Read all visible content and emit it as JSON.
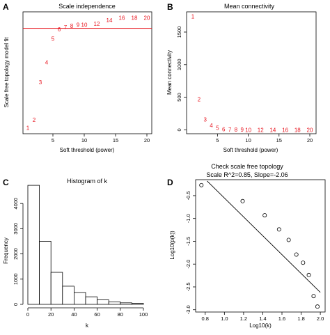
{
  "chart_data": [
    {
      "panel": "A",
      "type": "scatter",
      "title": "Scale independence",
      "xlabel": "Soft threshold (power)",
      "ylabel": "Scale free topology model fit",
      "xlim": [
        1,
        20
      ],
      "ylim": [
        -0.05,
        0.99
      ],
      "xticks": [
        5,
        10,
        15,
        20
      ],
      "points": [
        {
          "label": "1",
          "x": 1,
          "y": 0.0
        },
        {
          "label": "2",
          "x": 2,
          "y": 0.07
        },
        {
          "label": "3",
          "x": 3,
          "y": 0.39
        },
        {
          "label": "4",
          "x": 4,
          "y": 0.56
        },
        {
          "label": "5",
          "x": 5,
          "y": 0.76
        },
        {
          "label": "6",
          "x": 6,
          "y": 0.84
        },
        {
          "label": "7",
          "x": 7,
          "y": 0.86
        },
        {
          "label": "8",
          "x": 8,
          "y": 0.87
        },
        {
          "label": "9",
          "x": 9,
          "y": 0.88
        },
        {
          "label": "10",
          "x": 10,
          "y": 0.88
        },
        {
          "label": "12",
          "x": 12,
          "y": 0.89
        },
        {
          "label": "14",
          "x": 14,
          "y": 0.92
        },
        {
          "label": "16",
          "x": 16,
          "y": 0.94
        },
        {
          "label": "18",
          "x": 18,
          "y": 0.94
        },
        {
          "label": "20",
          "x": 20,
          "y": 0.94
        }
      ],
      "hline": 0.85,
      "hline_color": "#e8141e",
      "label_color": "#e8141e"
    },
    {
      "panel": "B",
      "type": "scatter",
      "title": "Mean connectivity",
      "xlabel": "Soft threshold (power)",
      "ylabel": "Mean connectivity",
      "xlim": [
        1,
        20
      ],
      "ylim": [
        -60,
        1810
      ],
      "xticks": [
        5,
        10,
        15,
        20
      ],
      "yticks": [
        0,
        500,
        1000,
        1500
      ],
      "points": [
        {
          "label": "1",
          "x": 1,
          "y": 1740
        },
        {
          "label": "2",
          "x": 2,
          "y": 470
        },
        {
          "label": "3",
          "x": 3,
          "y": 160
        },
        {
          "label": "4",
          "x": 4,
          "y": 70
        },
        {
          "label": "5",
          "x": 5,
          "y": 30
        },
        {
          "label": "6",
          "x": 6,
          "y": 10
        },
        {
          "label": "7",
          "x": 7,
          "y": 5
        },
        {
          "label": "8",
          "x": 8,
          "y": 3
        },
        {
          "label": "9",
          "x": 9,
          "y": 2
        },
        {
          "label": "10",
          "x": 10,
          "y": 1
        },
        {
          "label": "12",
          "x": 12,
          "y": 0
        },
        {
          "label": "14",
          "x": 14,
          "y": 0
        },
        {
          "label": "16",
          "x": 16,
          "y": 0
        },
        {
          "label": "18",
          "x": 18,
          "y": 0
        },
        {
          "label": "20",
          "x": 20,
          "y": 0
        }
      ],
      "label_color": "#e8141e"
    },
    {
      "panel": "C",
      "type": "bar",
      "title": "Histogram of k",
      "xlabel": "k",
      "ylabel": "Frequency",
      "xlim": [
        0,
        105
      ],
      "ylim": [
        0,
        4750
      ],
      "xticks": [
        0,
        20,
        40,
        60,
        80,
        100
      ],
      "yticks": [
        0,
        1000,
        2000,
        3000,
        4000
      ],
      "bin_width": 10,
      "bins": [
        0,
        10,
        20,
        30,
        40,
        50,
        60,
        70,
        80,
        90
      ],
      "values": [
        4720,
        2500,
        1270,
        720,
        470,
        300,
        180,
        100,
        60,
        40
      ]
    },
    {
      "panel": "D",
      "type": "scatter",
      "title": "Check scale free topology",
      "subtitle": "Scale R^2=0.85, Slope=-2.06",
      "xlabel": "Log10(k)",
      "ylabel": "Log10(p(k))",
      "xlim": [
        0.7,
        2.05
      ],
      "ylim": [
        -3.05,
        -0.15
      ],
      "xticks": [
        0.8,
        1.0,
        1.2,
        1.4,
        1.6,
        1.8,
        2.0
      ],
      "yticks": [
        -3.0,
        -2.5,
        -2.0,
        -1.5,
        -1.0,
        -0.5
      ],
      "points": [
        {
          "x": 0.76,
          "y": -0.27
        },
        {
          "x": 1.19,
          "y": -0.62
        },
        {
          "x": 1.42,
          "y": -0.93
        },
        {
          "x": 1.57,
          "y": -1.24
        },
        {
          "x": 1.67,
          "y": -1.47
        },
        {
          "x": 1.75,
          "y": -1.79
        },
        {
          "x": 1.82,
          "y": -1.97
        },
        {
          "x": 1.88,
          "y": -2.24
        },
        {
          "x": 1.93,
          "y": -2.7
        },
        {
          "x": 1.97,
          "y": -2.93
        }
      ],
      "fit_line": {
        "x": [
          0.82,
          2.0
        ],
        "y": [
          -0.18,
          -2.62
        ]
      }
    }
  ]
}
